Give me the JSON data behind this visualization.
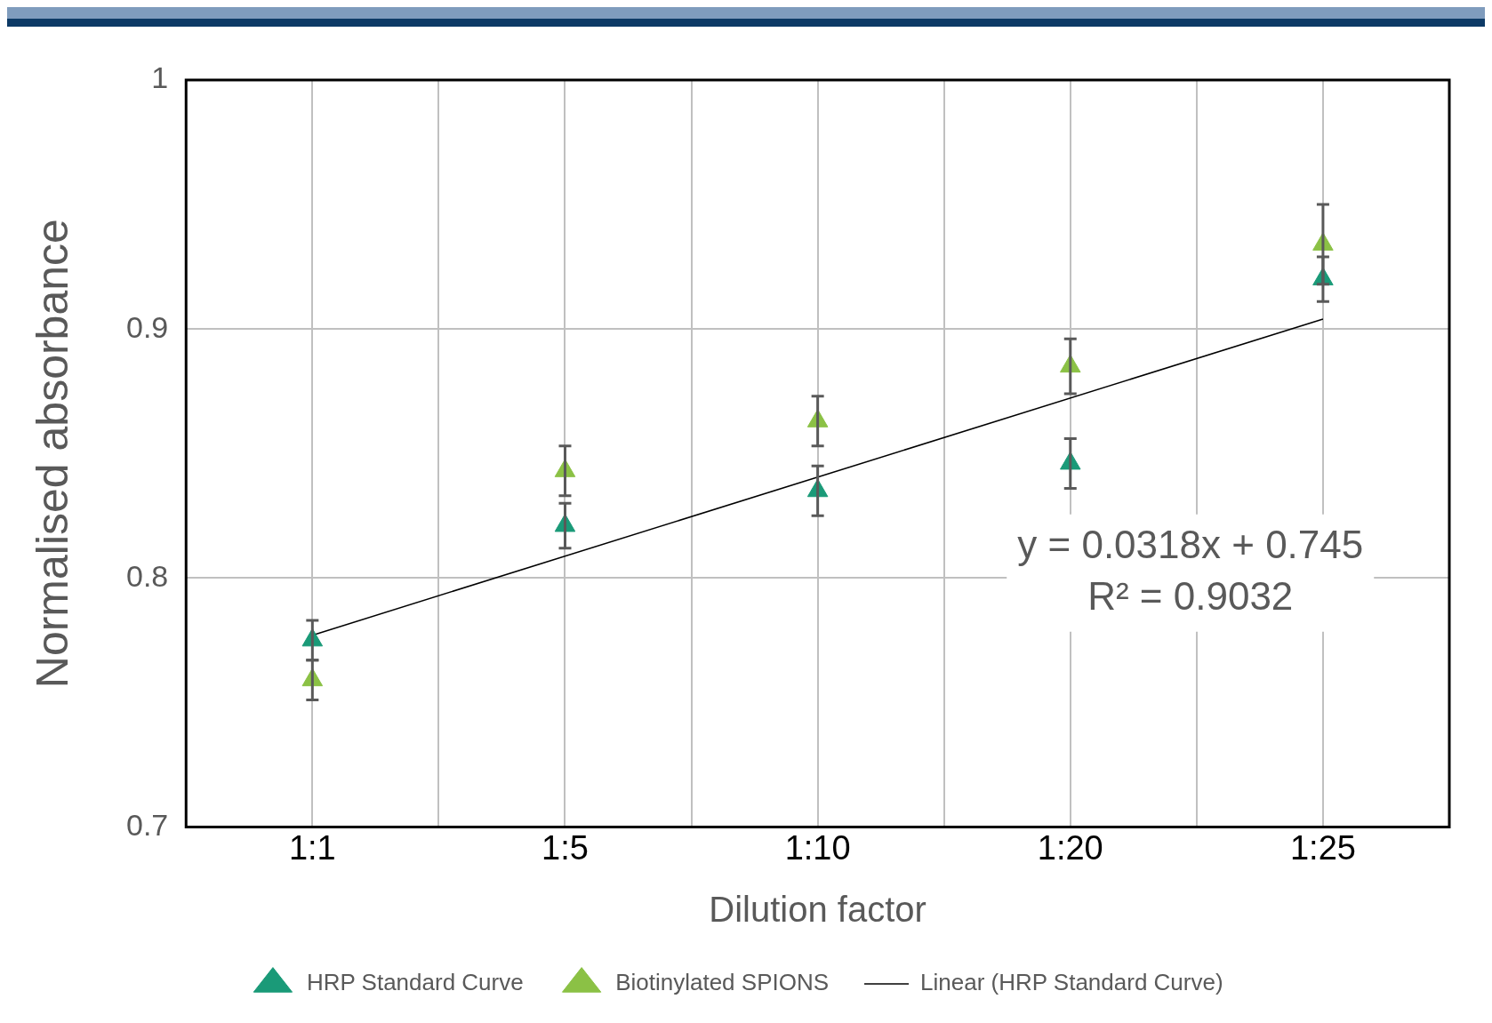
{
  "chart_data": {
    "type": "scatter",
    "xlabel": "Dilution factor",
    "ylabel": "Normalised absorbance",
    "categories": [
      "1:1",
      "1:5",
      "1:10",
      "1:20",
      "1:25"
    ],
    "series": [
      {
        "name": "HRP Standard Curve",
        "color": "#1a9a78",
        "values": [
          0.775,
          0.821,
          0.835,
          0.846,
          0.92
        ],
        "errors": [
          0.008,
          0.009,
          0.01,
          0.01,
          0.009
        ]
      },
      {
        "name": "Biotinylated SPIONS",
        "color": "#8bc145",
        "values": [
          0.759,
          0.843,
          0.863,
          0.885,
          0.934
        ],
        "errors": [
          0.008,
          0.01,
          0.01,
          0.011,
          0.016
        ]
      },
      {
        "name": "Linear (HRP Standard Curve)",
        "type": "line",
        "color": "#000000",
        "x": [
          "1:1",
          "1:25"
        ],
        "values": [
          0.777,
          0.904
        ],
        "marker": "none"
      }
    ],
    "ylim": [
      0.7,
      1
    ],
    "yticks": [
      0.7,
      0.8,
      0.9,
      1
    ],
    "marker": "triangle",
    "grid": true,
    "legend": "bottom",
    "annotations": [
      "y = 0.0318x + 0.745\nR² = 0.9032"
    ]
  }
}
